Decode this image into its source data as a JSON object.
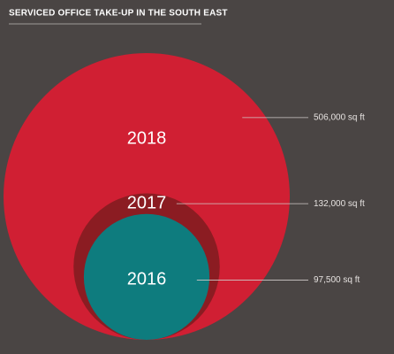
{
  "chart_data": {
    "type": "bubble",
    "title": "SERVICED OFFICE TAKE-UP IN THE SOUTH EAST",
    "categories": [
      "2018",
      "2017",
      "2016"
    ],
    "values": [
      506000,
      132000,
      97500
    ],
    "value_labels": [
      "506,000 sq ft",
      "132,000 sq ft",
      "97,500 sq ft"
    ],
    "colors": [
      "#d01f33",
      "#8b1c22",
      "#0e7c7e"
    ]
  }
}
